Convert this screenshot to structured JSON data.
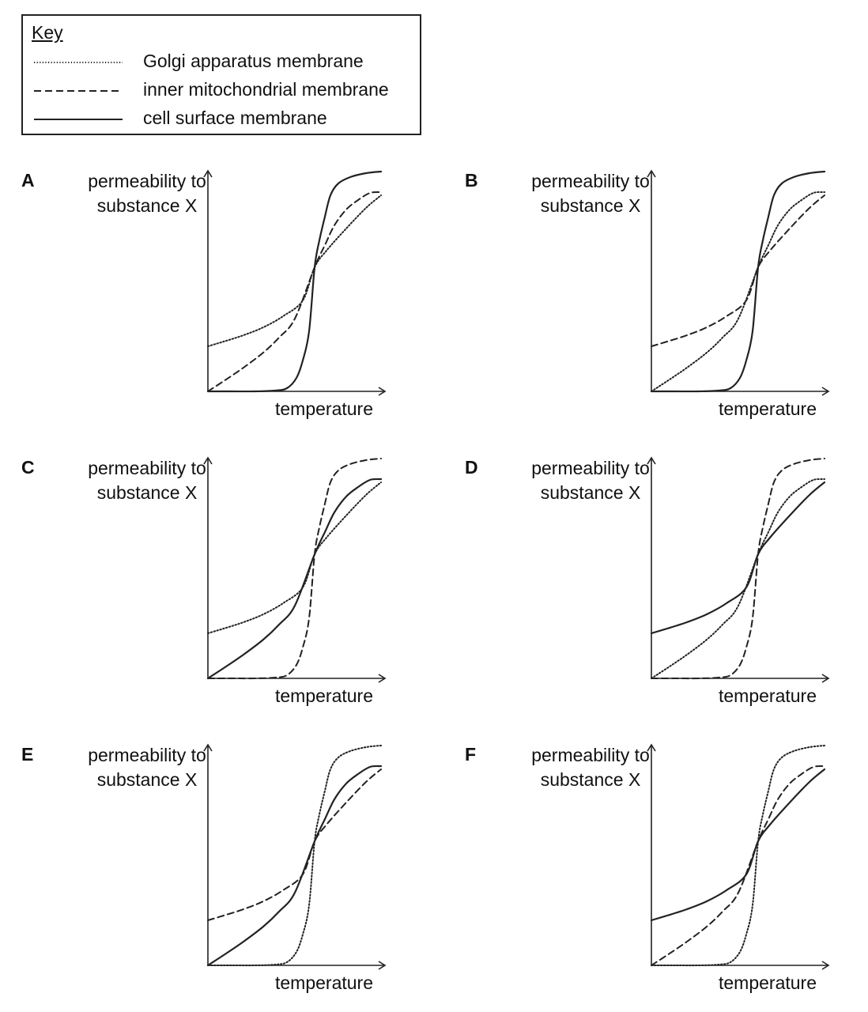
{
  "key": {
    "title": "Key",
    "items": [
      {
        "id": "golgi",
        "label": "Golgi apparatus membrane",
        "style": "dotted"
      },
      {
        "id": "mito",
        "label": "inner mitochondrial membrane",
        "style": "dashed"
      },
      {
        "id": "cell",
        "label": "cell surface membrane",
        "style": "solid"
      }
    ]
  },
  "axes": {
    "ylabel_line1": "permeability to",
    "ylabel_line2": "substance X",
    "xlabel": "temperature"
  },
  "panels": [
    {
      "letter": "A",
      "curves": {
        "cell": "steep",
        "mito": "medium",
        "golgi": "shallow"
      }
    },
    {
      "letter": "B",
      "curves": {
        "cell": "steep",
        "golgi": "medium",
        "mito": "shallow"
      }
    },
    {
      "letter": "C",
      "curves": {
        "mito": "steep",
        "cell": "medium",
        "golgi": "shallow"
      }
    },
    {
      "letter": "D",
      "curves": {
        "mito": "steep",
        "golgi": "medium",
        "cell": "shallow"
      }
    },
    {
      "letter": "E",
      "curves": {
        "golgi": "steep",
        "cell": "medium",
        "mito": "shallow"
      }
    },
    {
      "letter": "F",
      "curves": {
        "golgi": "steep",
        "mito": "medium",
        "cell": "shallow"
      }
    }
  ]
}
